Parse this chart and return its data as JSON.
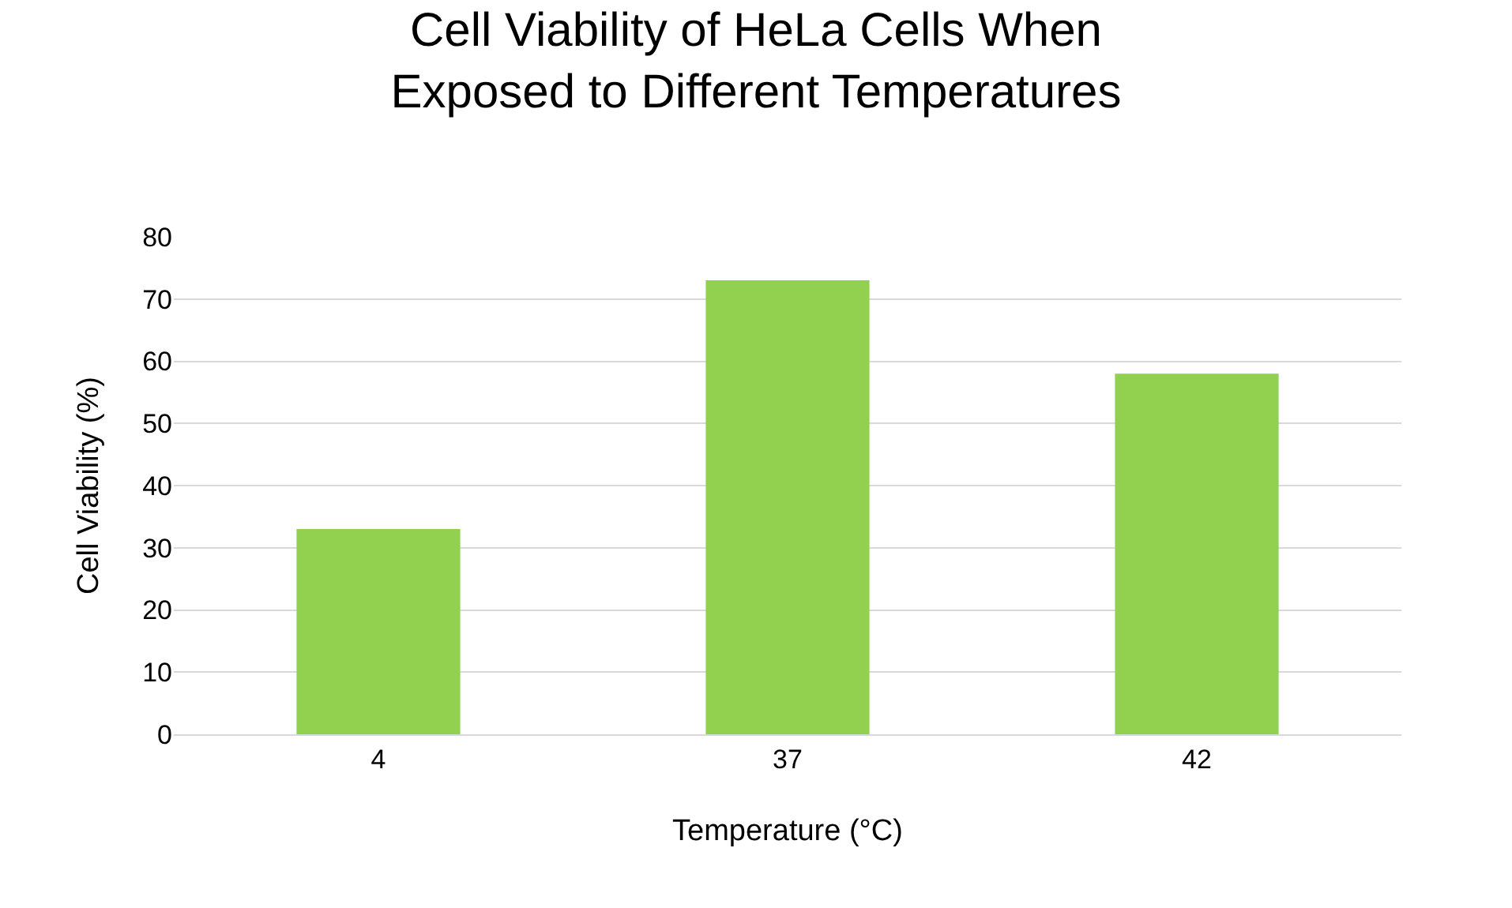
{
  "chart_data": {
    "type": "bar",
    "title": "Cell Viability of HeLa Cells When Exposed to Different Temperatures",
    "xlabel": "Temperature (°C)",
    "ylabel": "Cell Viability (%)",
    "categories": [
      "4",
      "37",
      "42"
    ],
    "values": [
      33,
      73,
      58
    ],
    "color": "#92d050",
    "ylim": [
      0,
      80
    ],
    "yticks": [
      0,
      10,
      20,
      30,
      40,
      50,
      60,
      70,
      80
    ],
    "grid": "y"
  }
}
